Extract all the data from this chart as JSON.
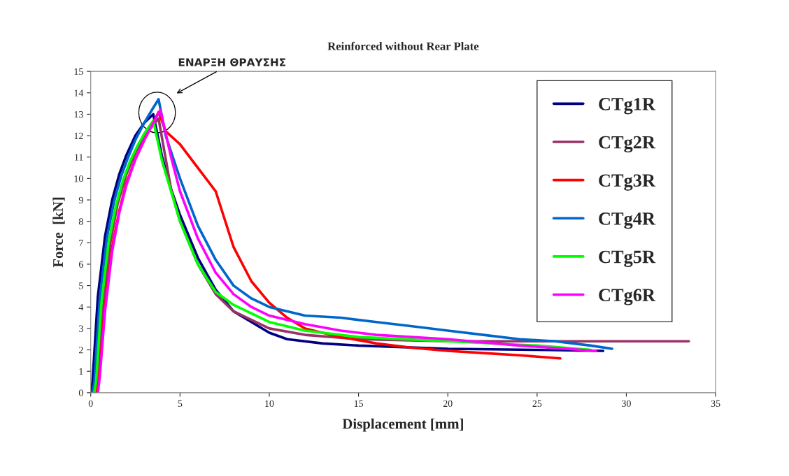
{
  "chart_data": {
    "type": "line",
    "title": "Reinforced without Rear Plate",
    "xlabel": "Displacement [mm]",
    "ylabel": "Force  [kN]",
    "xlim": [
      0,
      35
    ],
    "ylim": [
      0,
      15
    ],
    "xticks": [
      0,
      5,
      10,
      15,
      20,
      25,
      30,
      35
    ],
    "yticks": [
      0,
      1,
      2,
      3,
      4,
      5,
      6,
      7,
      8,
      9,
      10,
      11,
      12,
      13,
      14,
      15
    ],
    "grid": false,
    "legend": "top right",
    "marker": "none",
    "line_style": "solid",
    "annotations": [
      "ΕΝΑΡΞΗ ΘΡΑΥΣΗΣ"
    ],
    "series": [
      {
        "name": "CTg1R",
        "color": "#000080",
        "x": [
          0.0,
          0.1,
          0.4,
          0.8,
          1.2,
          1.6,
          2.0,
          2.5,
          3.0,
          3.5,
          4.0,
          4.5,
          5.0,
          6.0,
          7.0,
          8.0,
          9.0,
          10.0,
          11.0,
          13.0,
          15.0,
          20.0,
          25.0,
          28.7
        ],
        "values": [
          0,
          0.5,
          4.5,
          7.3,
          9.0,
          10.2,
          11.1,
          12.0,
          12.6,
          13.0,
          11.0,
          9.5,
          8.3,
          6.3,
          4.8,
          3.8,
          3.3,
          2.8,
          2.5,
          2.3,
          2.2,
          2.05,
          2.0,
          1.95
        ]
      },
      {
        "name": "CTg2R",
        "color": "#993366",
        "x": [
          0.3,
          0.4,
          0.7,
          1.1,
          1.5,
          2.0,
          2.5,
          3.0,
          3.5,
          3.8,
          4.5,
          5.0,
          6.0,
          7.0,
          8.0,
          9.0,
          10.0,
          12.0,
          15.0,
          20.0,
          25.0,
          30.0,
          33.5
        ],
        "values": [
          0,
          0.5,
          4.0,
          7.0,
          8.8,
          10.2,
          11.2,
          12.0,
          12.5,
          12.8,
          9.5,
          8.0,
          6.0,
          4.6,
          3.8,
          3.4,
          3.0,
          2.7,
          2.5,
          2.4,
          2.4,
          2.4,
          2.4
        ]
      },
      {
        "name": "CTg3R",
        "color": "#ff0000",
        "x": [
          0.3,
          0.5,
          0.8,
          1.2,
          1.6,
          2.0,
          2.5,
          3.0,
          3.5,
          3.8,
          4.2,
          5.0,
          6.0,
          7.0,
          8.0,
          9.0,
          10.0,
          11.0,
          12.0,
          14.0,
          16.0,
          18.0,
          20.0,
          22.0,
          24.0,
          26.3
        ],
        "values": [
          0,
          1.0,
          4.0,
          6.8,
          8.5,
          9.8,
          10.9,
          11.8,
          12.6,
          13.1,
          12.2,
          11.6,
          10.5,
          9.4,
          6.8,
          5.2,
          4.2,
          3.5,
          3.0,
          2.6,
          2.3,
          2.1,
          1.95,
          1.85,
          1.75,
          1.6
        ]
      },
      {
        "name": "CTg4R",
        "color": "#0066cc",
        "x": [
          0.1,
          0.2,
          0.5,
          0.9,
          1.3,
          1.7,
          2.1,
          2.5,
          3.0,
          3.5,
          3.8,
          4.2,
          5.0,
          6.0,
          7.0,
          8.0,
          9.0,
          10.0,
          12.0,
          14.0,
          16.0,
          18.0,
          20.0,
          22.0,
          24.0,
          26.0,
          28.0,
          29.2
        ],
        "values": [
          0,
          0.5,
          4.3,
          7.2,
          8.9,
          10.1,
          11.0,
          11.8,
          12.6,
          13.3,
          13.7,
          12.0,
          10.0,
          7.8,
          6.2,
          5.0,
          4.4,
          4.0,
          3.6,
          3.5,
          3.3,
          3.1,
          2.9,
          2.7,
          2.5,
          2.4,
          2.2,
          2.05
        ]
      },
      {
        "name": "CTg5R",
        "color": "#00ff00",
        "x": [
          0.2,
          0.3,
          0.6,
          1.0,
          1.4,
          1.8,
          2.2,
          2.6,
          3.0,
          3.5,
          4.0,
          5.0,
          6.0,
          7.0,
          8.0,
          9.0,
          10.0,
          12.0,
          15.0,
          20.0,
          25.0,
          28.0
        ],
        "values": [
          0,
          0.5,
          4.2,
          7.0,
          8.7,
          9.9,
          10.8,
          11.5,
          12.1,
          12.7,
          10.8,
          8.0,
          6.0,
          4.7,
          4.1,
          3.7,
          3.3,
          2.9,
          2.6,
          2.4,
          2.2,
          2.0
        ]
      },
      {
        "name": "CTg6R",
        "color": "#ff00ff",
        "x": [
          0.4,
          0.5,
          0.8,
          1.2,
          1.6,
          2.0,
          2.5,
          3.0,
          3.5,
          3.9,
          4.5,
          5.0,
          6.0,
          7.0,
          8.0,
          9.0,
          10.0,
          12.0,
          14.0,
          16.0,
          20.0,
          24.0,
          28.3
        ],
        "values": [
          0,
          0.7,
          3.8,
          6.6,
          8.4,
          9.7,
          10.9,
          11.8,
          12.6,
          13.2,
          11.0,
          9.4,
          7.2,
          5.6,
          4.6,
          4.0,
          3.6,
          3.2,
          2.9,
          2.7,
          2.5,
          2.2,
          1.95
        ]
      }
    ]
  }
}
